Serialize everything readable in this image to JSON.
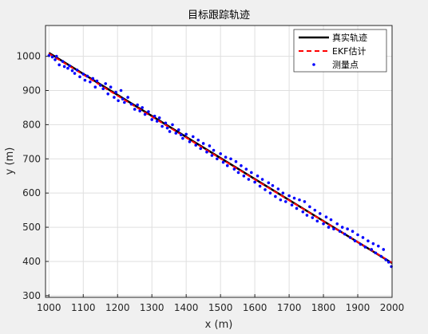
{
  "chart_data": {
    "type": "line",
    "title": "目标跟踪轨迹",
    "xlabel": "x (m)",
    "ylabel": "y (m)",
    "xlim": [
      990,
      2000
    ],
    "ylim": [
      295,
      1090
    ],
    "xticks": [
      1000,
      1100,
      1200,
      1300,
      1400,
      1500,
      1600,
      1700,
      1800,
      1900,
      2000
    ],
    "yticks": [
      300,
      400,
      500,
      600,
      700,
      800,
      900,
      1000
    ],
    "grid": true,
    "legend_position": "top-right",
    "colors": {
      "true": "#000000",
      "ekf": "#ff0000",
      "meas": "#0000ff"
    },
    "series": [
      {
        "name": "真实轨迹",
        "style": "solid",
        "x": [
          1000,
          2000
        ],
        "y": [
          1010,
          395
        ]
      },
      {
        "name": "EKF估计",
        "style": "dashed",
        "x": [
          1000,
          1250,
          1500,
          1750,
          2000
        ],
        "y": [
          1008,
          854,
          701,
          548,
          396
        ]
      },
      {
        "name": "测量点",
        "style": "points",
        "x": [
          1000,
          1010,
          1018,
          1022,
          1030,
          1040,
          1045,
          1055,
          1060,
          1068,
          1075,
          1082,
          1090,
          1100,
          1105,
          1112,
          1120,
          1128,
          1135,
          1140,
          1150,
          1158,
          1165,
          1172,
          1180,
          1190,
          1195,
          1202,
          1210,
          1215,
          1220,
          1230,
          1240,
          1250,
          1258,
          1265,
          1272,
          1280,
          1290,
          1300,
          1308,
          1315,
          1322,
          1330,
          1340,
          1345,
          1352,
          1360,
          1370,
          1378,
          1385,
          1390,
          1400,
          1410,
          1420,
          1428,
          1435,
          1442,
          1450,
          1460,
          1468,
          1475,
          1480,
          1490,
          1500,
          1508,
          1515,
          1520,
          1530,
          1540,
          1545,
          1552,
          1560,
          1568,
          1575,
          1582,
          1590,
          1600,
          1608,
          1615,
          1622,
          1630,
          1640,
          1645,
          1652,
          1660,
          1668,
          1675,
          1682,
          1690,
          1700,
          1708,
          1715,
          1722,
          1730,
          1740,
          1745,
          1752,
          1760,
          1768,
          1775,
          1782,
          1790,
          1800,
          1808,
          1815,
          1822,
          1830,
          1840,
          1848,
          1855,
          1862,
          1870,
          1878,
          1885,
          1892,
          1900,
          1908,
          1915,
          1922,
          1930,
          1940,
          1945,
          1952,
          1960,
          1968,
          1975,
          1982,
          1990,
          1998
        ],
        "y": [
          1002,
          998,
          990,
          1000,
          975,
          985,
          970,
          965,
          972,
          958,
          950,
          960,
          940,
          948,
          930,
          942,
          925,
          935,
          910,
          928,
          915,
          905,
          920,
          890,
          910,
          880,
          895,
          870,
          900,
          875,
          865,
          880,
          860,
          845,
          858,
          840,
          850,
          830,
          838,
          815,
          825,
          810,
          820,
          795,
          805,
          790,
          780,
          800,
          775,
          785,
          770,
          760,
          772,
          750,
          765,
          740,
          755,
          730,
          745,
          720,
          738,
          710,
          725,
          700,
          715,
          690,
          705,
          680,
          700,
          670,
          692,
          660,
          680,
          650,
          670,
          640,
          660,
          632,
          650,
          620,
          640,
          610,
          630,
          600,
          622,
          590,
          612,
          580,
          600,
          575,
          592,
          565,
          585,
          555,
          580,
          545,
          575,
          535,
          560,
          528,
          550,
          518,
          540,
          510,
          530,
          500,
          522,
          495,
          510,
          488,
          500,
          480,
          495,
          470,
          488,
          460,
          478,
          450,
          470,
          442,
          460,
          435,
          452,
          425,
          445,
          415,
          435,
          405,
          398,
          385
        ]
      }
    ]
  }
}
